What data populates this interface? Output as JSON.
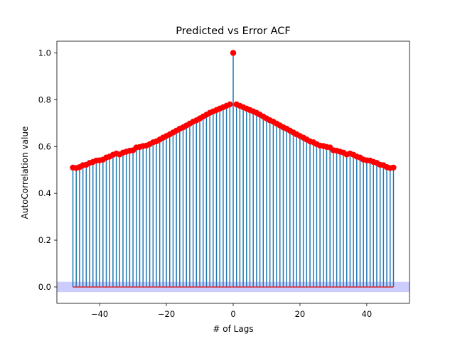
{
  "chart_data": {
    "type": "stem",
    "title": "Predicted vs Error ACF",
    "xlabel": "# of Lags",
    "ylabel": "AutoCorrelation value",
    "xlim": [
      -52.8,
      52.8
    ],
    "ylim": [
      -0.07,
      1.05
    ],
    "xticks": [
      -40,
      -20,
      0,
      20,
      40
    ],
    "xtick_labels": [
      "−40",
      "−20",
      "0",
      "20",
      "40"
    ],
    "yticks": [
      0.0,
      0.2,
      0.4,
      0.6,
      0.8,
      1.0
    ],
    "ytick_labels": [
      "0.0",
      "0.2",
      "0.4",
      "0.6",
      "0.8",
      "1.0"
    ],
    "grid": false,
    "legend": "none",
    "lag_min": -48,
    "lag_max": 48,
    "values_negative_lags_from_minus48_to_minus1": [
      0.51,
      0.508,
      0.512,
      0.52,
      0.522,
      0.53,
      0.534,
      0.54,
      0.541,
      0.544,
      0.553,
      0.557,
      0.565,
      0.57,
      0.566,
      0.574,
      0.578,
      0.582,
      0.584,
      0.596,
      0.598,
      0.602,
      0.604,
      0.61,
      0.618,
      0.622,
      0.63,
      0.638,
      0.645,
      0.652,
      0.66,
      0.668,
      0.676,
      0.682,
      0.69,
      0.698,
      0.706,
      0.712,
      0.72,
      0.728,
      0.736,
      0.744,
      0.75,
      0.756,
      0.762,
      0.768,
      0.774,
      0.78
    ],
    "value_lag_0": 1.0,
    "values_positive_lags_from_1_to_48": [
      0.78,
      0.774,
      0.768,
      0.762,
      0.756,
      0.75,
      0.744,
      0.736,
      0.728,
      0.72,
      0.712,
      0.706,
      0.698,
      0.69,
      0.682,
      0.676,
      0.668,
      0.66,
      0.652,
      0.645,
      0.638,
      0.63,
      0.622,
      0.618,
      0.61,
      0.604,
      0.602,
      0.598,
      0.596,
      0.584,
      0.582,
      0.578,
      0.574,
      0.566,
      0.57,
      0.565,
      0.557,
      0.553,
      0.544,
      0.541,
      0.54,
      0.534,
      0.53,
      0.522,
      0.52,
      0.512,
      0.508,
      0.51
    ],
    "confidence_band": [
      -0.022,
      0.022
    ],
    "colors": {
      "stem": "#1f77b4",
      "marker": "#ff0000",
      "baseline": "#d62728",
      "band": "#0000ff"
    }
  }
}
